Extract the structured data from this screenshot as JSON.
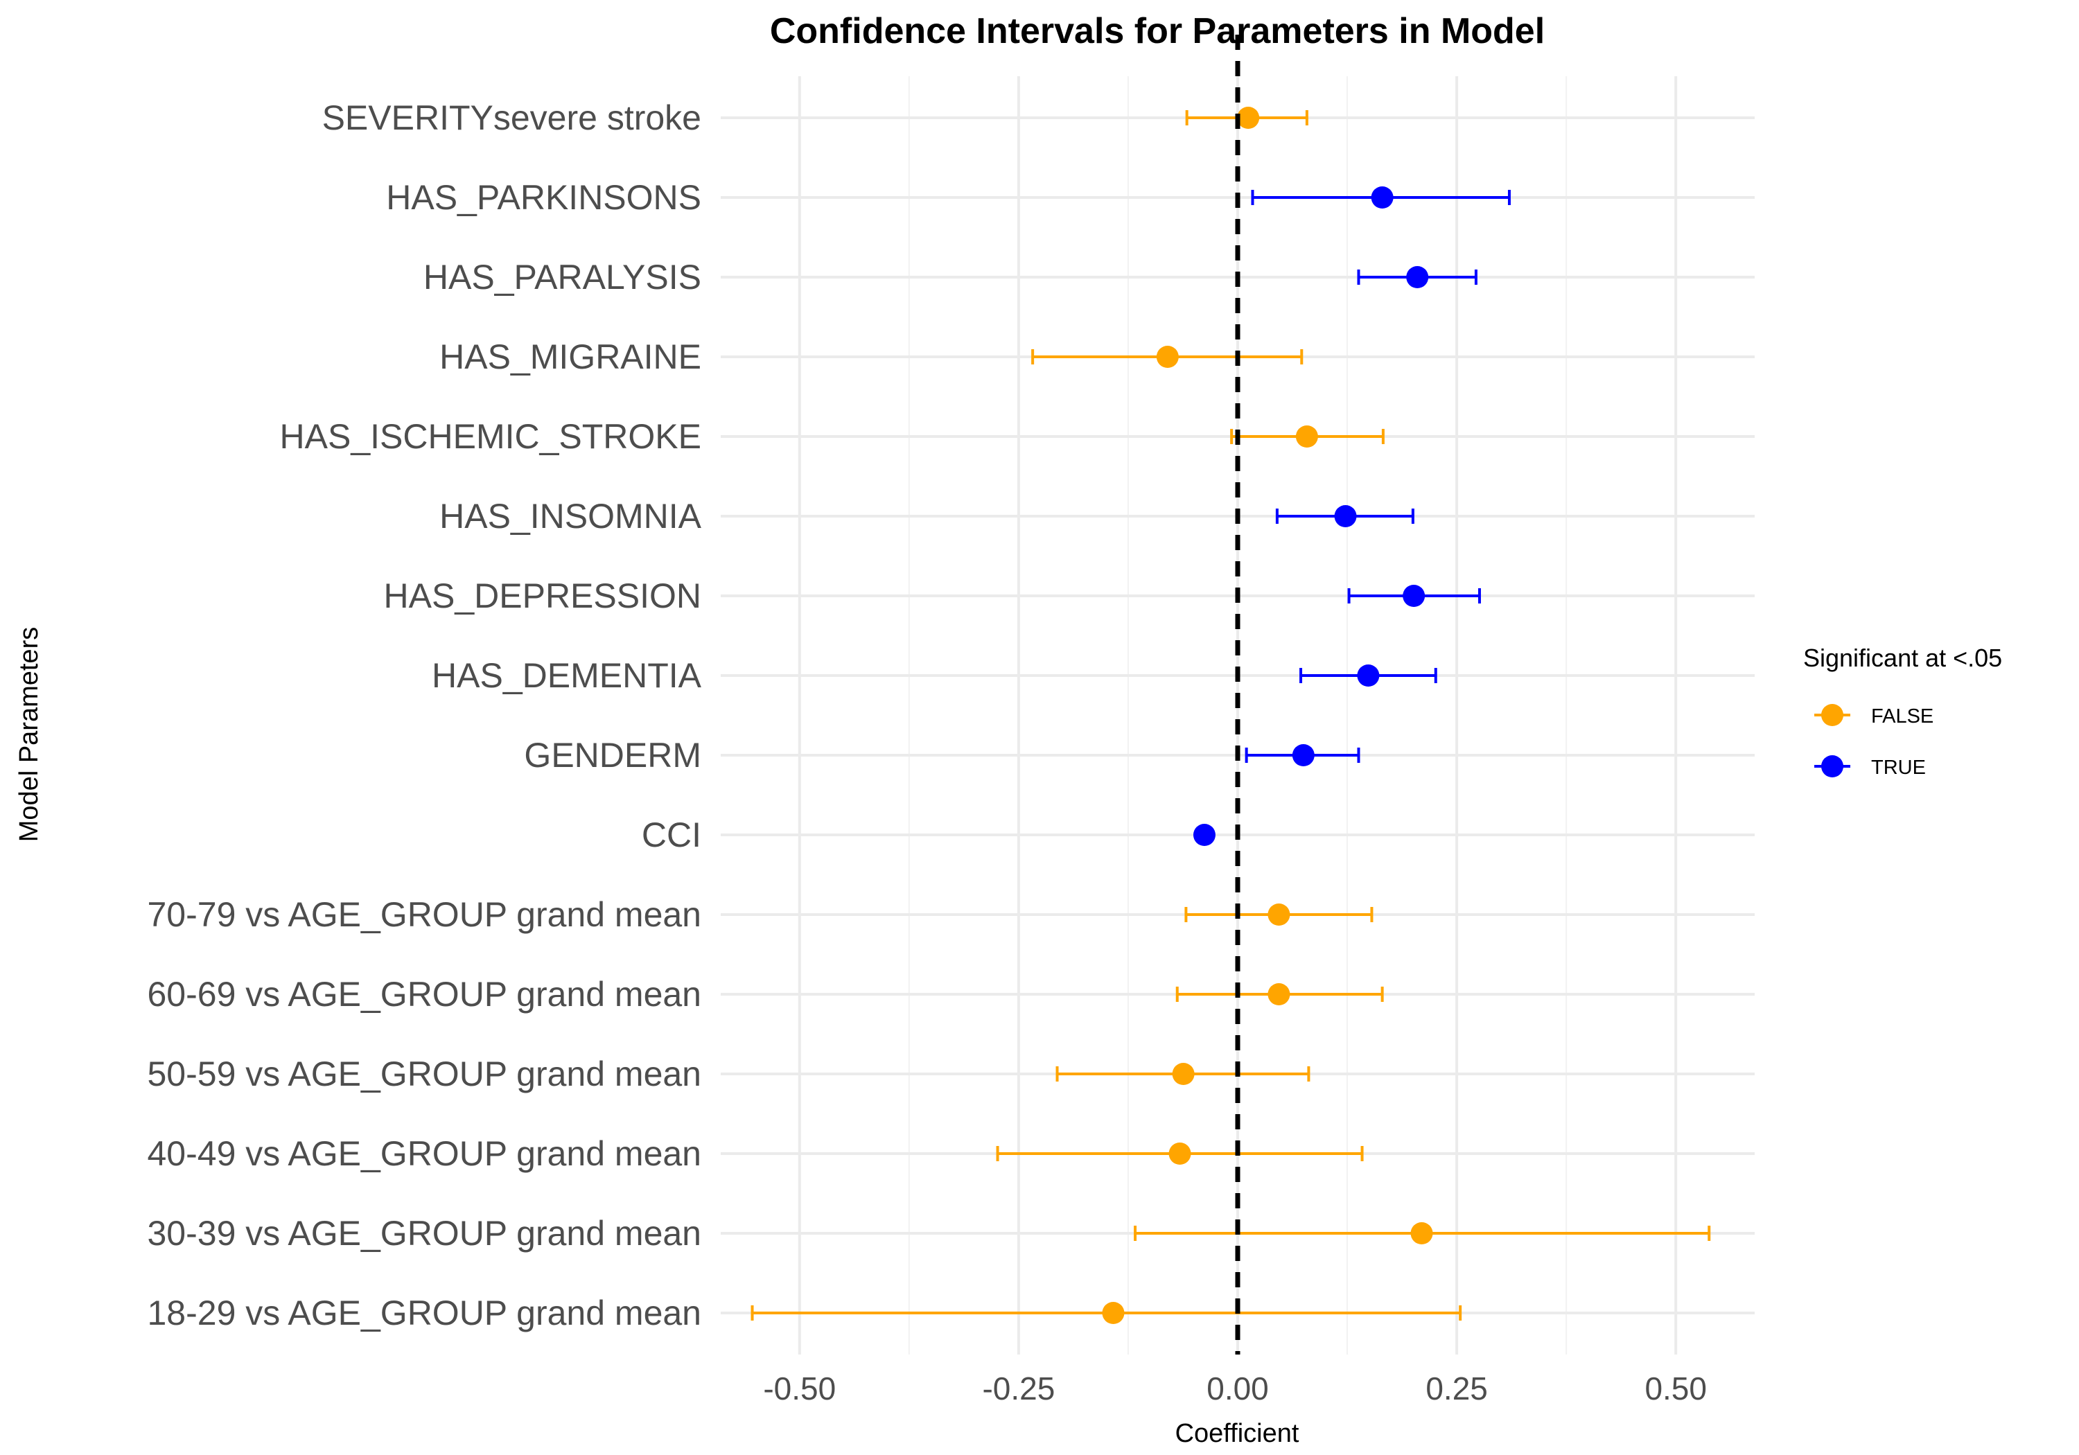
{
  "colors": {
    "false": "#FFA500",
    "true": "#0000FF",
    "zero_line": "#000000",
    "grid": "#ebebeb"
  },
  "chart_data": {
    "type": "scatter",
    "subtype": "errorbar",
    "title": "Confidence Intervals for Parameters in Model",
    "xlabel": "Coefficient",
    "ylabel": "Model Parameters",
    "xlim": [
      -0.59,
      0.59
    ],
    "x_ticks": [
      -0.5,
      -0.25,
      0.0,
      0.25,
      0.5
    ],
    "x_tick_labels": [
      "-0.50",
      "-0.25",
      "0.00",
      "0.25",
      "0.50"
    ],
    "reference_line": {
      "x": 0,
      "style": "dashed"
    },
    "grid": true,
    "legend": {
      "title": "Significant at <.05",
      "placement": "right",
      "entries": [
        {
          "label": "FALSE",
          "color": "#FFA500"
        },
        {
          "label": "TRUE",
          "color": "#0000FF"
        }
      ]
    },
    "points": [
      {
        "label": "SEVERITYsevere stroke",
        "estimate": 0.012,
        "lower": -0.058,
        "upper": 0.079,
        "significant": false
      },
      {
        "label": "HAS_PARKINSONS",
        "estimate": 0.165,
        "lower": 0.017,
        "upper": 0.31,
        "significant": true
      },
      {
        "label": "HAS_PARALYSIS",
        "estimate": 0.205,
        "lower": 0.138,
        "upper": 0.272,
        "significant": true
      },
      {
        "label": "HAS_MIGRAINE",
        "estimate": -0.08,
        "lower": -0.234,
        "upper": 0.073,
        "significant": false
      },
      {
        "label": "HAS_ISCHEMIC_STROKE",
        "estimate": 0.079,
        "lower": -0.007,
        "upper": 0.166,
        "significant": false
      },
      {
        "label": "HAS_INSOMNIA",
        "estimate": 0.123,
        "lower": 0.045,
        "upper": 0.2,
        "significant": true
      },
      {
        "label": "HAS_DEPRESSION",
        "estimate": 0.201,
        "lower": 0.127,
        "upper": 0.276,
        "significant": true
      },
      {
        "label": "HAS_DEMENTIA",
        "estimate": 0.149,
        "lower": 0.072,
        "upper": 0.226,
        "significant": true
      },
      {
        "label": "GENDERM",
        "estimate": 0.075,
        "lower": 0.01,
        "upper": 0.138,
        "significant": true
      },
      {
        "label": "CCI",
        "estimate": -0.038,
        "lower": -0.045,
        "upper": -0.031,
        "significant": true
      },
      {
        "label": "70-79 vs AGE_GROUP grand mean",
        "estimate": 0.047,
        "lower": -0.059,
        "upper": 0.153,
        "significant": false
      },
      {
        "label": "60-69 vs AGE_GROUP grand mean",
        "estimate": 0.047,
        "lower": -0.069,
        "upper": 0.165,
        "significant": false
      },
      {
        "label": "50-59 vs AGE_GROUP grand mean",
        "estimate": -0.062,
        "lower": -0.206,
        "upper": 0.081,
        "significant": false
      },
      {
        "label": "40-49 vs AGE_GROUP grand mean",
        "estimate": -0.066,
        "lower": -0.274,
        "upper": 0.142,
        "significant": false
      },
      {
        "label": "30-39 vs AGE_GROUP grand mean",
        "estimate": 0.21,
        "lower": -0.117,
        "upper": 0.538,
        "significant": false
      },
      {
        "label": "18-29 vs AGE_GROUP grand mean",
        "estimate": -0.142,
        "lower": -0.554,
        "upper": 0.254,
        "significant": false
      }
    ]
  }
}
